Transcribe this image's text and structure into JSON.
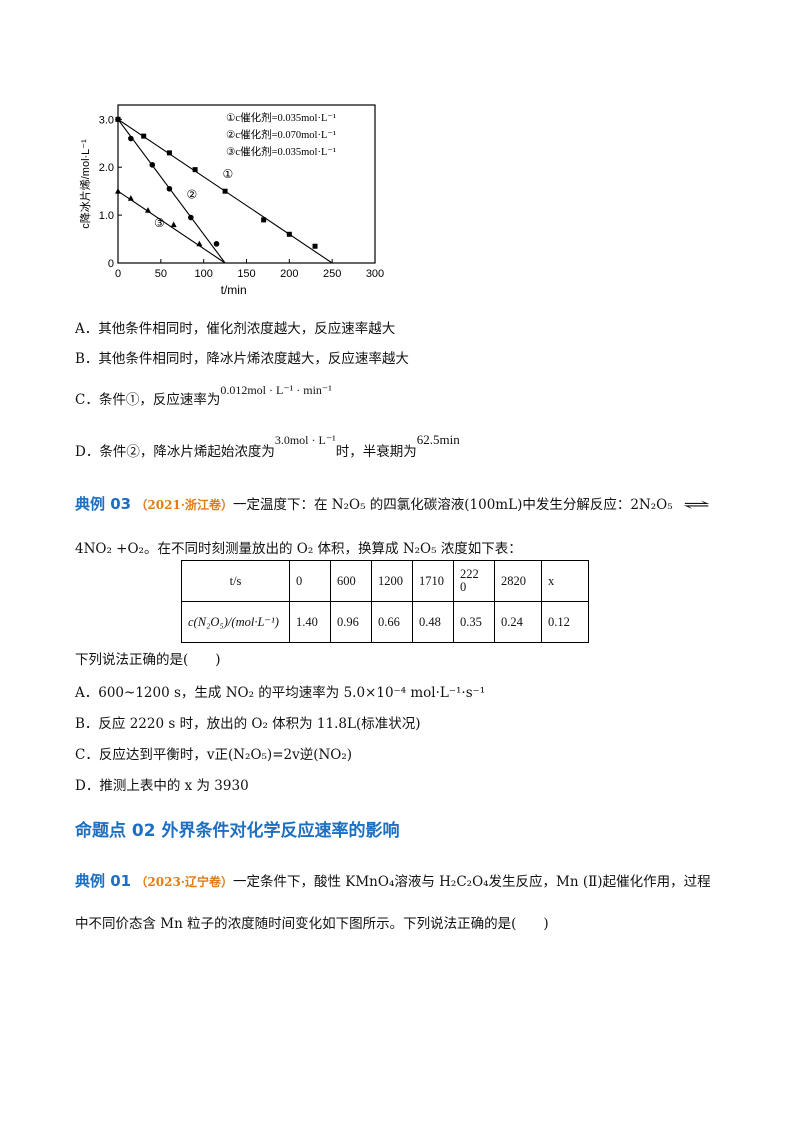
{
  "chart_data": {
    "type": "scatter",
    "xlabel": "t/min",
    "ylabel": "c降冰片烯/mol·L⁻¹",
    "xlim": [
      0,
      300
    ],
    "ylim": [
      0,
      3.3
    ],
    "x_ticks": [
      "0",
      "50",
      "100",
      "150",
      "200",
      "250",
      "300"
    ],
    "y_ticks": [
      "0",
      "1.0",
      "2.0",
      "3.0"
    ],
    "legend": [
      "①c催化剂=0.035mol·L⁻¹",
      "②c催化剂=0.070mol·L⁻¹",
      "③c催化剂=0.035mol·L⁻¹"
    ],
    "line_labels": [
      "①",
      "②",
      "③"
    ],
    "series": [
      {
        "name": "①",
        "line": [
          [
            0,
            3.0
          ],
          [
            250,
            0
          ]
        ],
        "points": [
          [
            0,
            3.0
          ],
          [
            30,
            2.65
          ],
          [
            60,
            2.3
          ],
          [
            90,
            1.95
          ],
          [
            125,
            1.5
          ],
          [
            170,
            0.9
          ],
          [
            200,
            0.6
          ],
          [
            230,
            0.35
          ]
        ]
      },
      {
        "name": "②",
        "line": [
          [
            0,
            3.0
          ],
          [
            125,
            0
          ]
        ],
        "points": [
          [
            0,
            3.0
          ],
          [
            15,
            2.6
          ],
          [
            40,
            2.05
          ],
          [
            60,
            1.55
          ],
          [
            85,
            0.95
          ],
          [
            115,
            0.4
          ]
        ]
      },
      {
        "name": "③",
        "line": [
          [
            0,
            1.5
          ],
          [
            125,
            0
          ]
        ],
        "points": [
          [
            0,
            1.5
          ],
          [
            15,
            1.35
          ],
          [
            35,
            1.1
          ],
          [
            65,
            0.8
          ],
          [
            95,
            0.4
          ]
        ]
      }
    ]
  },
  "options1": {
    "a": "A．其他条件相同时，催化剂浓度越大，反应速率越大",
    "b": "B．其他条件相同时，降冰片烯浓度越大，反应速率越大",
    "c_pre": "C．条件①，反应速率为",
    "c_math": "0.012mol · L⁻¹ · min⁻¹",
    "d_pre": "D．条件②，降冰片烯起始浓度为",
    "d_math1": "3.0mol · L⁻¹",
    "d_mid": "时，半衰期为",
    "d_math2": "62.5min"
  },
  "example03": {
    "tag": "典例 03",
    "source": "（2021·浙江卷）",
    "line1": "一定温度下：在 N₂O₅ 的四氯化碳溶液(100mL)中发生分解反应：2N₂O₅",
    "arrow": "⇌",
    "line2": "4NO₂ +O₂。在不同时刻测量放出的 O₂ 体积，换算成 N₂O₅ 浓度如下表："
  },
  "table": {
    "header": [
      "t/s",
      "0",
      "600",
      "1200",
      "1710",
      "222\n0",
      "2820",
      "x"
    ],
    "row": [
      "c(N₂O₅)/(mol·L⁻¹)",
      "1.40",
      "0.96",
      "0.66",
      "0.48",
      "0.35",
      "0.24",
      "0.12"
    ]
  },
  "question03": "下列说法正确的是(　　)",
  "options03": {
    "a": "A．600~1200 s，生成 NO₂ 的平均速率为 5.0×10⁻⁴ mol·L⁻¹·s⁻¹",
    "b": "B．反应 2220 s 时，放出的 O₂ 体积为 11.8L(标准状况)",
    "c": "C．反应达到平衡时，v正(N₂O₅)=2v逆(NO₂)",
    "d": "D．推测上表中的 x 为 3930"
  },
  "heading2": "命题点 02  外界条件对化学反应速率的影响",
  "example01": {
    "tag": "典例 01",
    "source": "（2023·辽宁卷）",
    "line1": "一定条件下，酸性 KMnO₄溶液与 H₂C₂O₄发生反应，Mn (Ⅱ)起催化作用，过程",
    "line2": "中不同价态含 Mn 粒子的浓度随时间变化如下图所示。下列说法正确的是(　　)"
  }
}
